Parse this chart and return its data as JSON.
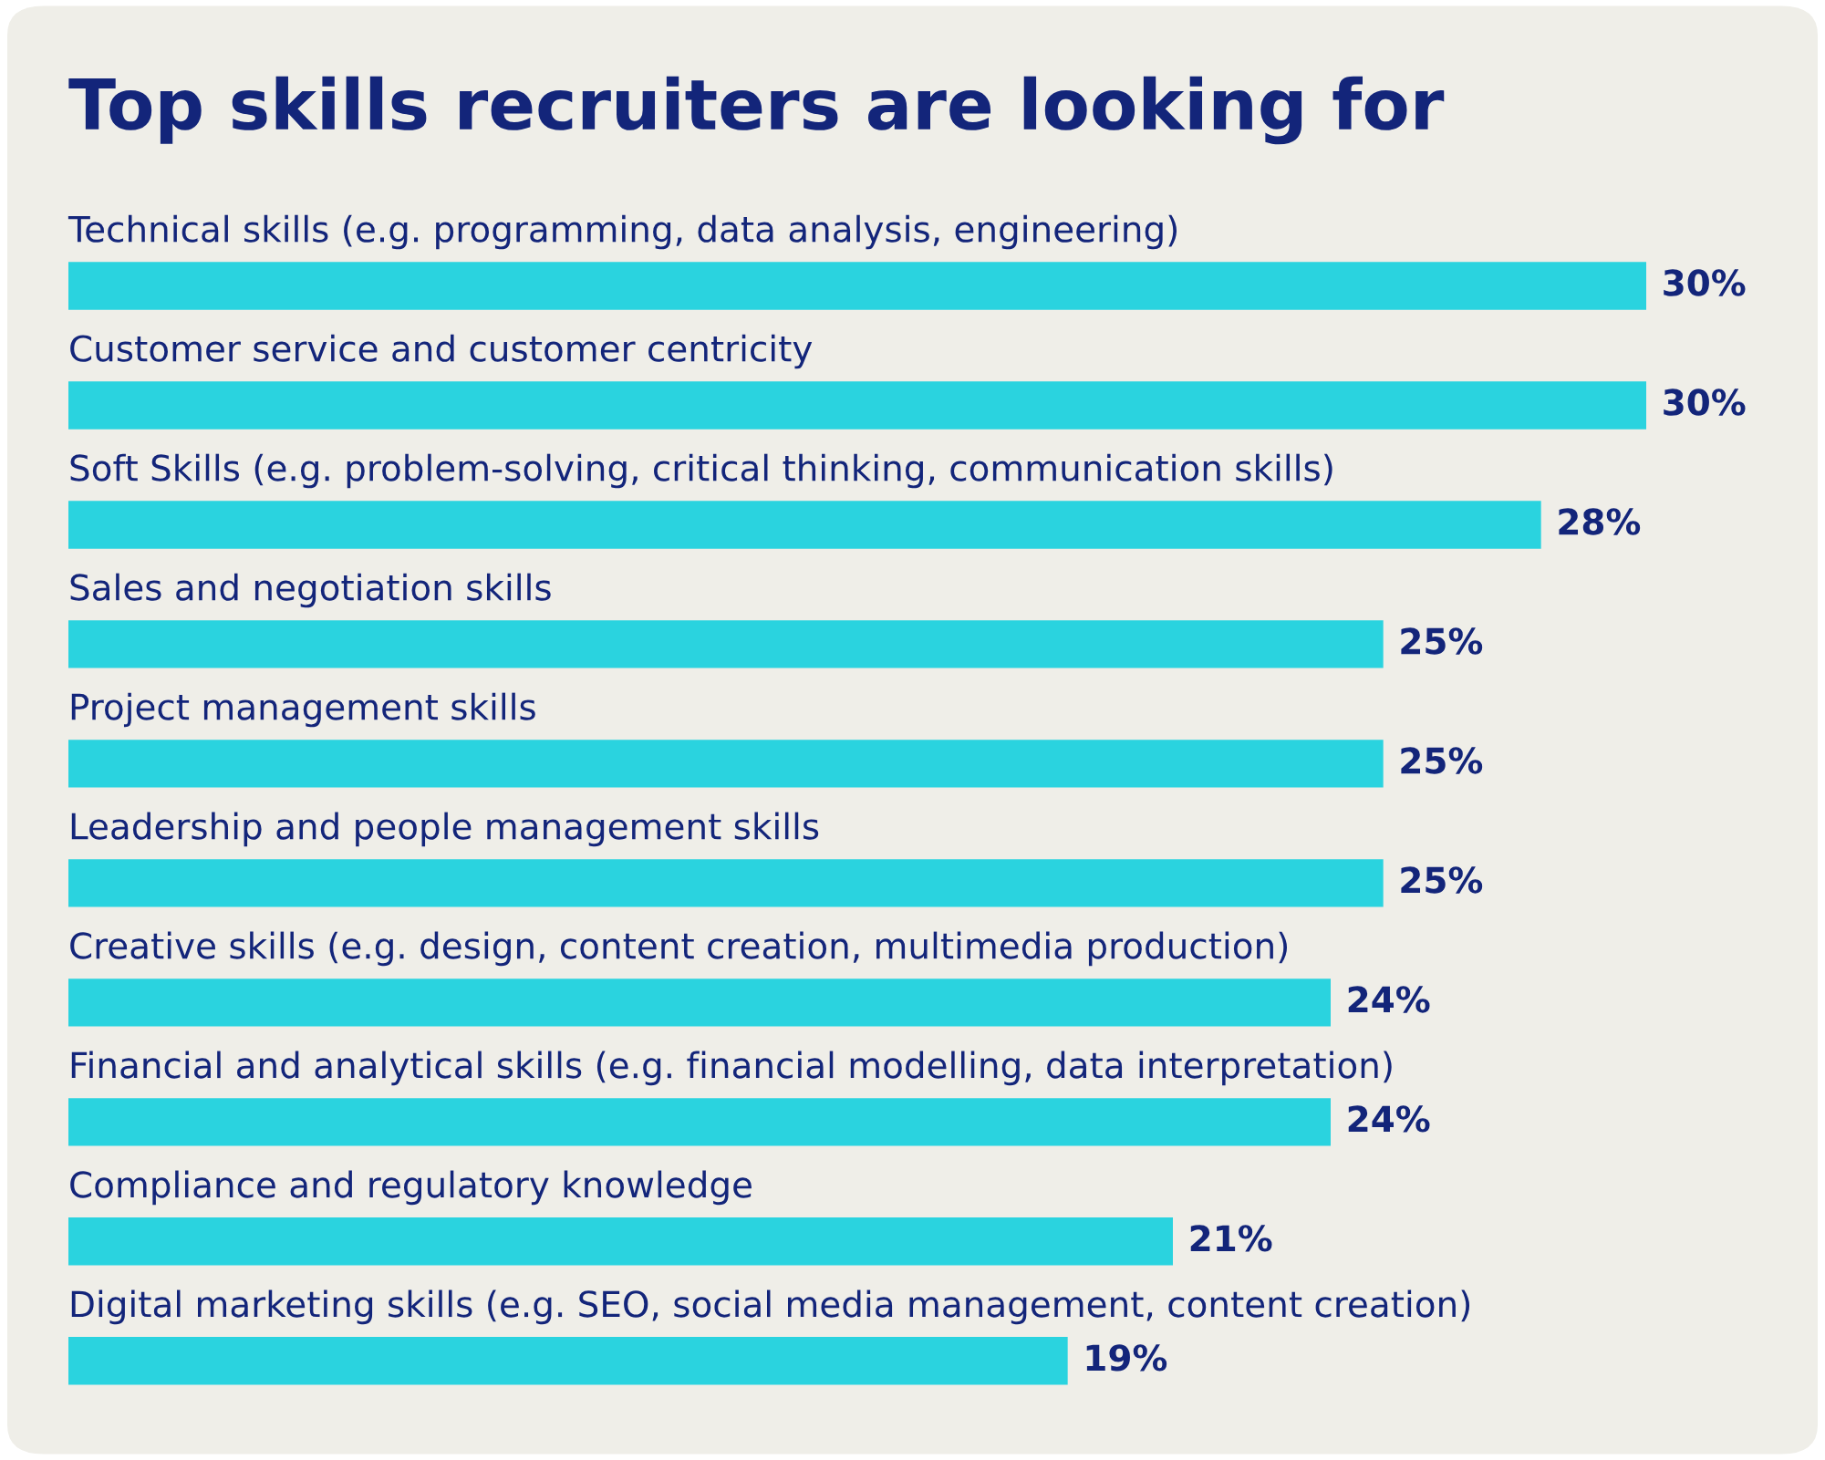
{
  "chart_data": {
    "type": "bar",
    "orientation": "horizontal",
    "title": "Top skills recruiters are looking for",
    "categories": [
      "Technical skills (e.g. programming, data analysis, engineering)",
      "Customer service and customer centricity",
      "Soft Skills (e.g. problem-solving, critical thinking, communication skills)",
      "Sales and negotiation skills",
      "Project management skills",
      "Leadership and people management skills",
      "Creative skills (e.g. design, content creation, multimedia production)",
      "Financial and analytical skills (e.g. financial modelling, data interpretation)",
      "Compliance and regulatory knowledge",
      "Digital marketing skills (e.g. SEO, social media management, content creation)"
    ],
    "values": [
      30,
      30,
      28,
      25,
      25,
      25,
      24,
      24,
      21,
      19
    ],
    "value_labels": [
      "30%",
      "30%",
      "28%",
      "25%",
      "25%",
      "25%",
      "24%",
      "24%",
      "21%",
      "19%"
    ],
    "color": "#2ad3df"
  }
}
